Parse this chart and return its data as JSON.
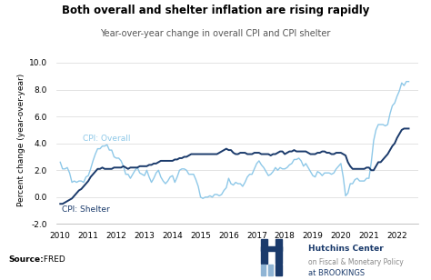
{
  "title": "Both overall and shelter inflation are rising rapidly",
  "subtitle": "Year-over-year change in overall CPI and CPI shelter",
  "ylabel": "Percent change (year-over-year)",
  "source_bold": "Source:",
  "source_normal": " FRED",
  "ylim": [
    -2.0,
    10.5
  ],
  "xlim": [
    2009.85,
    2022.75
  ],
  "yticks": [
    -2.0,
    0.0,
    2.0,
    4.0,
    6.0,
    8.0,
    10.0
  ],
  "xticks": [
    2010,
    2011,
    2012,
    2013,
    2014,
    2015,
    2016,
    2017,
    2018,
    2019,
    2020,
    2021,
    2022
  ],
  "color_overall": "#8ec8e8",
  "color_shelter": "#1a3a6b",
  "label_overall": "CPI: Overall",
  "label_shelter": "CPI: Shelter",
  "hutchins_text1": "Hutchins Center",
  "hutchins_text2": "on Fiscal & Monetary Policy",
  "hutchins_text3": "at BROOKINGS",
  "overall_x": [
    2010.0,
    2010.083,
    2010.167,
    2010.25,
    2010.333,
    2010.417,
    2010.5,
    2010.583,
    2010.667,
    2010.75,
    2010.833,
    2010.917,
    2011.0,
    2011.083,
    2011.167,
    2011.25,
    2011.333,
    2011.417,
    2011.5,
    2011.583,
    2011.667,
    2011.75,
    2011.833,
    2011.917,
    2012.0,
    2012.083,
    2012.167,
    2012.25,
    2012.333,
    2012.417,
    2012.5,
    2012.583,
    2012.667,
    2012.75,
    2012.833,
    2012.917,
    2013.0,
    2013.083,
    2013.167,
    2013.25,
    2013.333,
    2013.417,
    2013.5,
    2013.583,
    2013.667,
    2013.75,
    2013.833,
    2013.917,
    2014.0,
    2014.083,
    2014.167,
    2014.25,
    2014.333,
    2014.417,
    2014.5,
    2014.583,
    2014.667,
    2014.75,
    2014.833,
    2014.917,
    2015.0,
    2015.083,
    2015.167,
    2015.25,
    2015.333,
    2015.417,
    2015.5,
    2015.583,
    2015.667,
    2015.75,
    2015.833,
    2015.917,
    2016.0,
    2016.083,
    2016.167,
    2016.25,
    2016.333,
    2016.417,
    2016.5,
    2016.583,
    2016.667,
    2016.75,
    2016.833,
    2016.917,
    2017.0,
    2017.083,
    2017.167,
    2017.25,
    2017.333,
    2017.417,
    2017.5,
    2017.583,
    2017.667,
    2017.75,
    2017.833,
    2017.917,
    2018.0,
    2018.083,
    2018.167,
    2018.25,
    2018.333,
    2018.417,
    2018.5,
    2018.583,
    2018.667,
    2018.75,
    2018.833,
    2018.917,
    2019.0,
    2019.083,
    2019.167,
    2019.25,
    2019.333,
    2019.417,
    2019.5,
    2019.583,
    2019.667,
    2019.75,
    2019.833,
    2019.917,
    2020.0,
    2020.083,
    2020.167,
    2020.25,
    2020.333,
    2020.417,
    2020.5,
    2020.583,
    2020.667,
    2020.75,
    2020.833,
    2020.917,
    2021.0,
    2021.083,
    2021.167,
    2021.25,
    2021.333,
    2021.417,
    2021.5,
    2021.583,
    2021.667,
    2021.75,
    2021.833,
    2021.917,
    2022.0,
    2022.083,
    2022.167,
    2022.25,
    2022.333,
    2022.417
  ],
  "overall_y": [
    2.6,
    2.1,
    2.1,
    2.2,
    1.8,
    1.1,
    1.2,
    1.1,
    1.2,
    1.2,
    1.1,
    1.5,
    1.6,
    2.1,
    2.7,
    3.2,
    3.6,
    3.6,
    3.8,
    3.8,
    3.9,
    3.5,
    3.5,
    3.0,
    2.9,
    2.9,
    2.7,
    2.3,
    1.7,
    1.7,
    1.4,
    1.7,
    2.0,
    2.2,
    1.8,
    1.7,
    1.6,
    2.0,
    1.5,
    1.1,
    1.4,
    1.8,
    2.0,
    1.5,
    1.2,
    1.0,
    1.2,
    1.5,
    1.6,
    1.1,
    1.5,
    2.0,
    2.1,
    2.1,
    2.0,
    1.7,
    1.7,
    1.7,
    1.3,
    0.8,
    0.0,
    -0.1,
    0.0,
    0.0,
    0.1,
    0.0,
    0.2,
    0.2,
    0.1,
    0.2,
    0.5,
    0.7,
    1.4,
    1.0,
    0.9,
    1.1,
    1.0,
    1.0,
    0.8,
    1.1,
    1.5,
    1.7,
    1.7,
    2.1,
    2.5,
    2.7,
    2.4,
    2.2,
    1.9,
    1.6,
    1.7,
    1.9,
    2.2,
    2.0,
    2.2,
    2.1,
    2.1,
    2.2,
    2.4,
    2.5,
    2.8,
    2.8,
    2.9,
    2.7,
    2.3,
    2.5,
    2.2,
    1.9,
    1.6,
    1.5,
    1.9,
    1.8,
    1.6,
    1.8,
    1.8,
    1.8,
    1.7,
    1.8,
    2.1,
    2.3,
    2.5,
    1.5,
    0.1,
    0.3,
    1.0,
    1.0,
    1.3,
    1.4,
    1.2,
    1.2,
    1.2,
    1.4,
    1.4,
    2.6,
    4.2,
    5.0,
    5.4,
    5.4,
    5.4,
    5.3,
    5.4,
    6.2,
    6.8,
    7.0,
    7.5,
    7.9,
    8.5,
    8.3,
    8.6,
    8.6
  ],
  "shelter_x": [
    2010.0,
    2010.083,
    2010.167,
    2010.25,
    2010.333,
    2010.417,
    2010.5,
    2010.583,
    2010.667,
    2010.75,
    2010.833,
    2010.917,
    2011.0,
    2011.083,
    2011.167,
    2011.25,
    2011.333,
    2011.417,
    2011.5,
    2011.583,
    2011.667,
    2011.75,
    2011.833,
    2011.917,
    2012.0,
    2012.083,
    2012.167,
    2012.25,
    2012.333,
    2012.417,
    2012.5,
    2012.583,
    2012.667,
    2012.75,
    2012.833,
    2012.917,
    2013.0,
    2013.083,
    2013.167,
    2013.25,
    2013.333,
    2013.417,
    2013.5,
    2013.583,
    2013.667,
    2013.75,
    2013.833,
    2013.917,
    2014.0,
    2014.083,
    2014.167,
    2014.25,
    2014.333,
    2014.417,
    2014.5,
    2014.583,
    2014.667,
    2014.75,
    2014.833,
    2014.917,
    2015.0,
    2015.083,
    2015.167,
    2015.25,
    2015.333,
    2015.417,
    2015.5,
    2015.583,
    2015.667,
    2015.75,
    2015.833,
    2015.917,
    2016.0,
    2016.083,
    2016.167,
    2016.25,
    2016.333,
    2016.417,
    2016.5,
    2016.583,
    2016.667,
    2016.75,
    2016.833,
    2016.917,
    2017.0,
    2017.083,
    2017.167,
    2017.25,
    2017.333,
    2017.417,
    2017.5,
    2017.583,
    2017.667,
    2017.75,
    2017.833,
    2017.917,
    2018.0,
    2018.083,
    2018.167,
    2018.25,
    2018.333,
    2018.417,
    2018.5,
    2018.583,
    2018.667,
    2018.75,
    2018.833,
    2018.917,
    2019.0,
    2019.083,
    2019.167,
    2019.25,
    2019.333,
    2019.417,
    2019.5,
    2019.583,
    2019.667,
    2019.75,
    2019.833,
    2019.917,
    2020.0,
    2020.083,
    2020.167,
    2020.25,
    2020.333,
    2020.417,
    2020.5,
    2020.583,
    2020.667,
    2020.75,
    2020.833,
    2020.917,
    2021.0,
    2021.083,
    2021.167,
    2021.25,
    2021.333,
    2021.417,
    2021.5,
    2021.583,
    2021.667,
    2021.75,
    2021.833,
    2021.917,
    2022.0,
    2022.083,
    2022.167,
    2022.25,
    2022.333,
    2022.417
  ],
  "shelter_y": [
    -0.5,
    -0.5,
    -0.4,
    -0.3,
    -0.2,
    -0.1,
    0.1,
    0.3,
    0.5,
    0.6,
    0.8,
    1.0,
    1.2,
    1.5,
    1.7,
    1.9,
    2.1,
    2.1,
    2.2,
    2.1,
    2.1,
    2.1,
    2.1,
    2.2,
    2.2,
    2.2,
    2.2,
    2.3,
    2.2,
    2.1,
    2.2,
    2.2,
    2.2,
    2.2,
    2.3,
    2.3,
    2.3,
    2.3,
    2.4,
    2.4,
    2.5,
    2.5,
    2.6,
    2.7,
    2.7,
    2.7,
    2.7,
    2.7,
    2.7,
    2.8,
    2.8,
    2.9,
    2.9,
    3.0,
    3.0,
    3.1,
    3.2,
    3.2,
    3.2,
    3.2,
    3.2,
    3.2,
    3.2,
    3.2,
    3.2,
    3.2,
    3.2,
    3.2,
    3.3,
    3.4,
    3.5,
    3.6,
    3.5,
    3.5,
    3.3,
    3.2,
    3.2,
    3.3,
    3.3,
    3.3,
    3.2,
    3.2,
    3.2,
    3.3,
    3.3,
    3.3,
    3.2,
    3.2,
    3.2,
    3.2,
    3.1,
    3.2,
    3.2,
    3.3,
    3.4,
    3.4,
    3.2,
    3.3,
    3.4,
    3.4,
    3.5,
    3.4,
    3.4,
    3.4,
    3.4,
    3.4,
    3.3,
    3.2,
    3.2,
    3.2,
    3.3,
    3.3,
    3.4,
    3.4,
    3.3,
    3.3,
    3.2,
    3.2,
    3.3,
    3.3,
    3.3,
    3.2,
    3.1,
    2.6,
    2.3,
    2.1,
    2.1,
    2.1,
    2.1,
    2.1,
    2.1,
    2.2,
    2.2,
    2.0,
    2.0,
    2.3,
    2.6,
    2.6,
    2.8,
    3.0,
    3.2,
    3.5,
    3.8,
    4.0,
    4.4,
    4.7,
    5.0,
    5.1,
    5.1,
    5.1
  ]
}
